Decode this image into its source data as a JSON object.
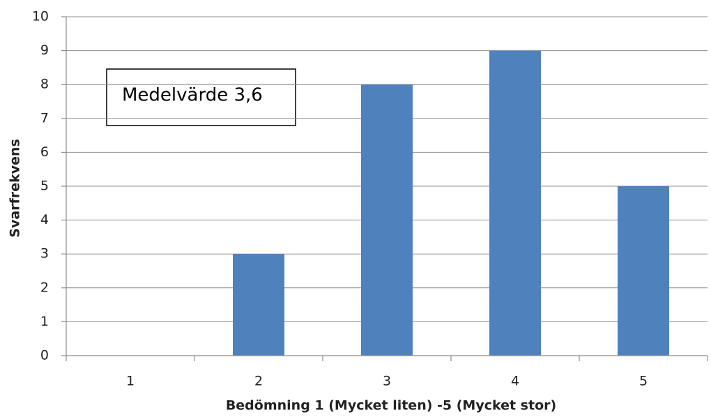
{
  "chart_data": {
    "type": "bar",
    "categories": [
      "1",
      "2",
      "3",
      "4",
      "5"
    ],
    "values": [
      0,
      3,
      8,
      9,
      5
    ],
    "color": "#4f81bd",
    "ylim": [
      0,
      10
    ],
    "yticks": [
      0,
      1,
      2,
      3,
      4,
      5,
      6,
      7,
      8,
      9,
      10
    ],
    "grid": true,
    "annotation": "Medelvärde 3,6",
    "x_label": "Bedömning 1 (Mycket liten) -5 (Mycket stor)",
    "y_label": "Svarfrekvens"
  }
}
